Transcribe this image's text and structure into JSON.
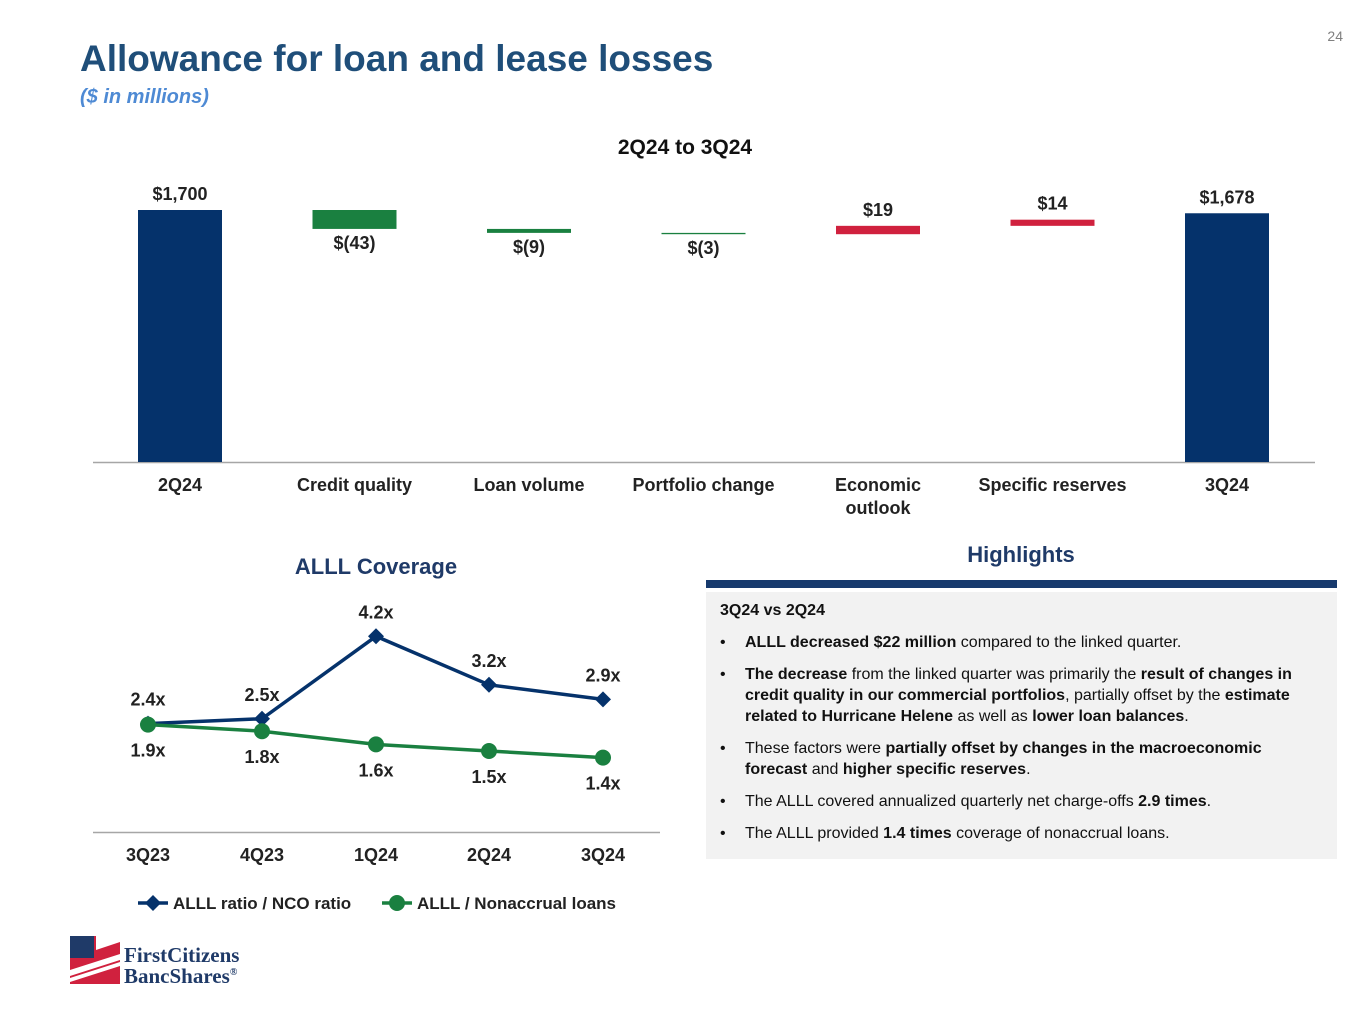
{
  "page": {
    "number": "24",
    "title": "Allowance for loan and lease losses",
    "subtitle": "($ in millions)"
  },
  "colors": {
    "navy": "#05326b",
    "green": "#1a8040",
    "red": "#d0213e",
    "axis": "#a6a6a6",
    "title_blue": "#1f4e79"
  },
  "chart_data": [
    {
      "type": "bar",
      "subtype": "waterfall",
      "title": "2Q24 to 3Q24",
      "unit": "$ in millions",
      "categories": [
        "2Q24",
        "Credit quality",
        "Loan volume",
        "Portfolio change",
        "Economic outlook",
        "Specific reserves",
        "3Q24"
      ],
      "category_lines": [
        [
          "2Q24"
        ],
        [
          "Credit quality"
        ],
        [
          "Loan volume"
        ],
        [
          "Portfolio change"
        ],
        [
          "Economic",
          "outlook"
        ],
        [
          "Specific reserves"
        ],
        [
          "3Q24"
        ]
      ],
      "values": [
        1700,
        -43,
        -9,
        -3,
        19,
        14,
        1678
      ],
      "labels": [
        "$1,700",
        "$(43)",
        "$(9)",
        "$(3)",
        "$19",
        "$14",
        "$1,678"
      ],
      "kinds": [
        "total",
        "decrease",
        "decrease",
        "decrease",
        "increase",
        "increase",
        "total"
      ],
      "grid": false
    },
    {
      "type": "line",
      "title": "ALLL Coverage",
      "categories": [
        "3Q23",
        "4Q23",
        "1Q24",
        "2Q24",
        "3Q24"
      ],
      "series": [
        {
          "name": "ALLL ratio / NCO ratio",
          "values": [
            2.4,
            2.5,
            4.2,
            3.2,
            2.9
          ],
          "labels": [
            "2.4x",
            "2.5x",
            "4.2x",
            "3.2x",
            "2.9x"
          ],
          "marker": "diamond",
          "color": "#05326b"
        },
        {
          "name": "ALLL / Nonaccrual loans",
          "values": [
            1.9,
            1.8,
            1.6,
            1.5,
            1.4
          ],
          "labels": [
            "1.9x",
            "1.8x",
            "1.6x",
            "1.5x",
            "1.4x"
          ],
          "marker": "circle",
          "color": "#1a8040"
        }
      ],
      "legend": "bottom",
      "grid": false
    }
  ],
  "highlights": {
    "title": "Highlights",
    "heading": "3Q24 vs 2Q24",
    "bullets": [
      [
        {
          "t": "ALLL decreased $22 million",
          "b": true
        },
        {
          "t": " compared to the linked quarter.",
          "b": false
        }
      ],
      [
        {
          "t": "The decrease",
          "b": true
        },
        {
          "t": " from the linked quarter was primarily the ",
          "b": false
        },
        {
          "t": "result of changes in credit quality in our commercial portfolios",
          "b": true
        },
        {
          "t": ", partially offset by the ",
          "b": false
        },
        {
          "t": "estimate related to Hurricane Helene",
          "b": true
        },
        {
          "t": " as well as ",
          "b": false
        },
        {
          "t": "lower loan balances",
          "b": true
        },
        {
          "t": ".",
          "b": false
        }
      ],
      [
        {
          "t": "These factors were ",
          "b": false
        },
        {
          "t": "partially offset by changes in the macroeconomic forecast",
          "b": true
        },
        {
          "t": " and ",
          "b": false
        },
        {
          "t": "higher specific reserves",
          "b": true
        },
        {
          "t": ".",
          "b": false
        }
      ],
      [
        {
          "t": "The ALLL covered annualized quarterly net charge-offs ",
          "b": false
        },
        {
          "t": "2.9 times",
          "b": true
        },
        {
          "t": ".",
          "b": false
        }
      ],
      [
        {
          "t": "The ALLL provided ",
          "b": false
        },
        {
          "t": "1.4 times",
          "b": true
        },
        {
          "t": " coverage of nonaccrual loans.",
          "b": false
        }
      ]
    ]
  },
  "logo": {
    "line1": "FirstCitizens",
    "line2": "BancShares",
    "mark": "®"
  }
}
